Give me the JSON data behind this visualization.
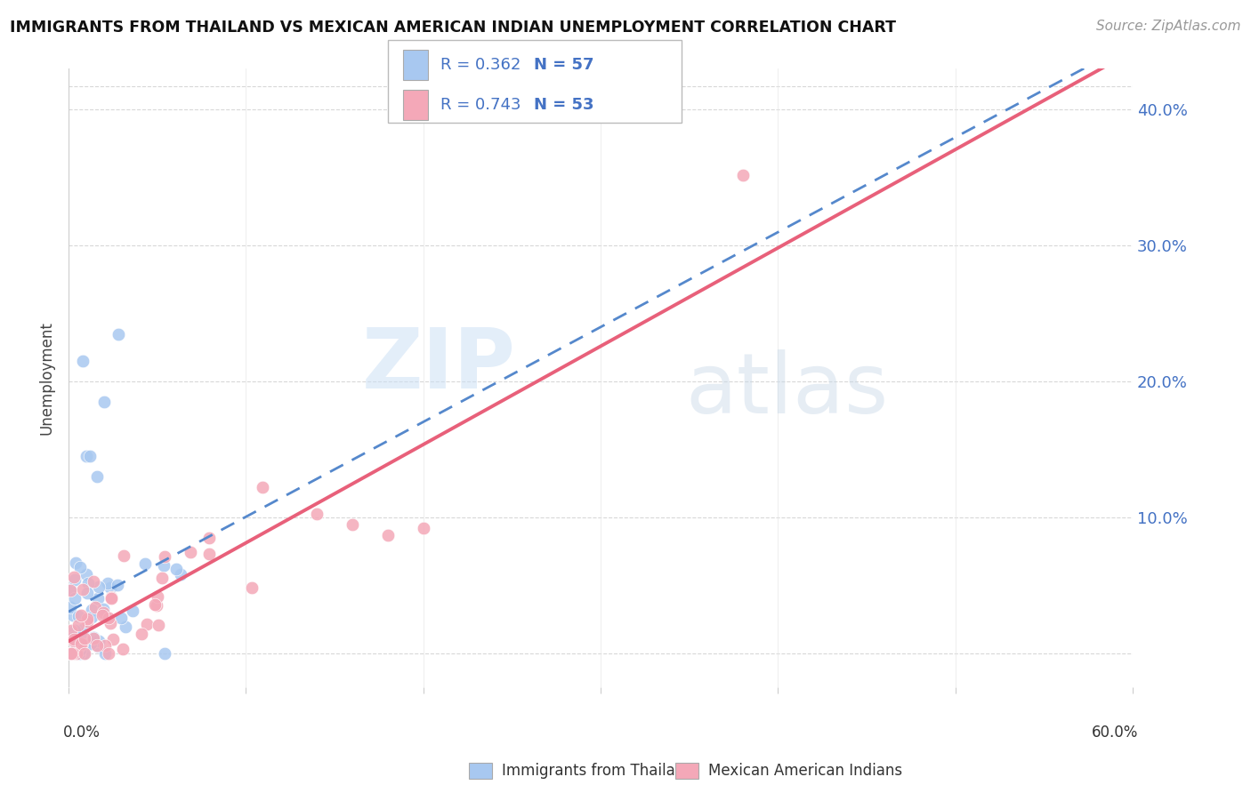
{
  "title": "IMMIGRANTS FROM THAILAND VS MEXICAN AMERICAN INDIAN UNEMPLOYMENT CORRELATION CHART",
  "source": "Source: ZipAtlas.com",
  "ylabel": "Unemployment",
  "ytick_values": [
    0.0,
    0.1,
    0.2,
    0.3,
    0.4
  ],
  "ytick_labels": [
    "",
    "10.0%",
    "20.0%",
    "30.0%",
    "40.0%"
  ],
  "xlim": [
    0.0,
    0.6
  ],
  "ylim": [
    -0.025,
    0.43
  ],
  "legend1_R": "0.362",
  "legend1_N": "57",
  "legend2_R": "0.743",
  "legend2_N": "53",
  "color_thailand": "#a8c8f0",
  "color_mexican": "#f4a8b8",
  "color_thailand_line": "#5588cc",
  "color_mexican_line": "#e8607a",
  "color_dashed": "#8ab0d8",
  "watermark_zip": "ZIP",
  "watermark_atlas": "atlas",
  "seed1": 42,
  "seed2": 99
}
